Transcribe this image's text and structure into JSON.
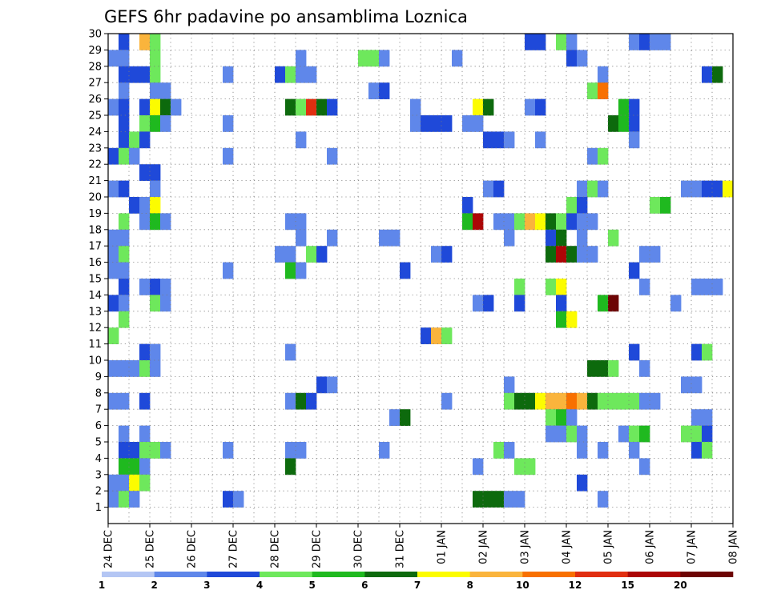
{
  "chart_data": {
    "type": "heatmap",
    "title": "GEFS 6hr padavine po ansamblima Loznica",
    "xlabel": "",
    "ylabel": "",
    "x_tick_labels": [
      "24 DEC",
      "25 DEC",
      "26 DEC",
      "27 DEC",
      "28 DEC",
      "29 DEC",
      "30 DEC",
      "31 DEC",
      "01 JAN",
      "02 JAN",
      "03 JAN",
      "04 JAN",
      "05 JAN",
      "06 JAN",
      "07 JAN",
      "08 JAN"
    ],
    "y_tick_labels": [
      "1",
      "2",
      "3",
      "4",
      "5",
      "6",
      "7",
      "8",
      "9",
      "10",
      "11",
      "12",
      "13",
      "14",
      "15",
      "16",
      "17",
      "18",
      "19",
      "20",
      "21",
      "22",
      "23",
      "24",
      "25",
      "26",
      "27",
      "28",
      "29",
      "30"
    ],
    "time_steps_per_day": 4,
    "time_steps_total": 60,
    "members_range": [
      0,
      30
    ],
    "grid": true,
    "legend_position": "bottom",
    "colorbar": {
      "labels": [
        "1",
        "2",
        "3",
        "4",
        "5",
        "6",
        "7",
        "8",
        "10",
        "12",
        "15",
        "20"
      ],
      "colors": [
        "#b4c6f4",
        "#5f87ea",
        "#1f49d9",
        "#6ee85c",
        "#1fb91f",
        "#0d6a0d",
        "#fcfc00",
        "#fab43c",
        "#f87000",
        "#e12e10",
        "#ac0606",
        "#6d0404"
      ]
    },
    "cells": [
      [
        1,
        29,
        2
      ],
      [
        3,
        29,
        7
      ],
      [
        4,
        29,
        3
      ],
      [
        40,
        29,
        2
      ],
      [
        41,
        29,
        2
      ],
      [
        43,
        29,
        3
      ],
      [
        44,
        29,
        1
      ],
      [
        50,
        29,
        1
      ],
      [
        51,
        29,
        2
      ],
      [
        52,
        29,
        1
      ],
      [
        53,
        29,
        1
      ],
      [
        0,
        28,
        1
      ],
      [
        1,
        28,
        1
      ],
      [
        4,
        28,
        3
      ],
      [
        18,
        28,
        1
      ],
      [
        24,
        28,
        3
      ],
      [
        25,
        28,
        3
      ],
      [
        26,
        28,
        1
      ],
      [
        33,
        28,
        1
      ],
      [
        44,
        28,
        2
      ],
      [
        45,
        28,
        1
      ],
      [
        1,
        27,
        2
      ],
      [
        2,
        27,
        2
      ],
      [
        3,
        27,
        2
      ],
      [
        4,
        27,
        3
      ],
      [
        11,
        27,
        1
      ],
      [
        16,
        27,
        2
      ],
      [
        17,
        27,
        3
      ],
      [
        18,
        27,
        1
      ],
      [
        19,
        27,
        1
      ],
      [
        47,
        27,
        1
      ],
      [
        57,
        27,
        2
      ],
      [
        58,
        27,
        5
      ],
      [
        1,
        26,
        1
      ],
      [
        4,
        26,
        1
      ],
      [
        5,
        26,
        1
      ],
      [
        25,
        26,
        1
      ],
      [
        26,
        26,
        2
      ],
      [
        46,
        26,
        3
      ],
      [
        47,
        26,
        8
      ],
      [
        0,
        25,
        1
      ],
      [
        1,
        25,
        2
      ],
      [
        3,
        25,
        2
      ],
      [
        4,
        25,
        6
      ],
      [
        5,
        25,
        5
      ],
      [
        6,
        25,
        1
      ],
      [
        17,
        25,
        5
      ],
      [
        18,
        25,
        3
      ],
      [
        19,
        25,
        9
      ],
      [
        20,
        25,
        5
      ],
      [
        21,
        25,
        2
      ],
      [
        29,
        25,
        1
      ],
      [
        35,
        25,
        6
      ],
      [
        36,
        25,
        5
      ],
      [
        40,
        25,
        1
      ],
      [
        41,
        25,
        2
      ],
      [
        49,
        25,
        4
      ],
      [
        50,
        25,
        2
      ],
      [
        1,
        24,
        2
      ],
      [
        3,
        24,
        3
      ],
      [
        4,
        24,
        4
      ],
      [
        5,
        24,
        1
      ],
      [
        11,
        24,
        1
      ],
      [
        29,
        24,
        1
      ],
      [
        30,
        24,
        2
      ],
      [
        31,
        24,
        2
      ],
      [
        32,
        24,
        2
      ],
      [
        34,
        24,
        1
      ],
      [
        35,
        24,
        1
      ],
      [
        48,
        24,
        5
      ],
      [
        49,
        24,
        4
      ],
      [
        50,
        24,
        2
      ],
      [
        1,
        23,
        2
      ],
      [
        2,
        23,
        3
      ],
      [
        3,
        23,
        2
      ],
      [
        18,
        23,
        1
      ],
      [
        36,
        23,
        2
      ],
      [
        37,
        23,
        2
      ],
      [
        38,
        23,
        1
      ],
      [
        41,
        23,
        1
      ],
      [
        50,
        23,
        1
      ],
      [
        0,
        22,
        2
      ],
      [
        1,
        22,
        3
      ],
      [
        2,
        22,
        1
      ],
      [
        11,
        22,
        1
      ],
      [
        21,
        22,
        1
      ],
      [
        46,
        22,
        1
      ],
      [
        47,
        22,
        3
      ],
      [
        3,
        21,
        2
      ],
      [
        4,
        21,
        2
      ],
      [
        0,
        20,
        1
      ],
      [
        1,
        20,
        2
      ],
      [
        4,
        20,
        1
      ],
      [
        36,
        20,
        1
      ],
      [
        37,
        20,
        2
      ],
      [
        45,
        20,
        1
      ],
      [
        46,
        20,
        3
      ],
      [
        47,
        20,
        1
      ],
      [
        55,
        20,
        1
      ],
      [
        56,
        20,
        1
      ],
      [
        57,
        20,
        2
      ],
      [
        58,
        20,
        2
      ],
      [
        59,
        20,
        6
      ],
      [
        2,
        19,
        2
      ],
      [
        3,
        19,
        1
      ],
      [
        4,
        19,
        6
      ],
      [
        34,
        19,
        2
      ],
      [
        44,
        19,
        3
      ],
      [
        45,
        19,
        2
      ],
      [
        52,
        19,
        3
      ],
      [
        53,
        19,
        4
      ],
      [
        1,
        18,
        3
      ],
      [
        3,
        18,
        1
      ],
      [
        4,
        18,
        4
      ],
      [
        5,
        18,
        1
      ],
      [
        17,
        18,
        1
      ],
      [
        18,
        18,
        1
      ],
      [
        34,
        18,
        4
      ],
      [
        35,
        18,
        10
      ],
      [
        37,
        18,
        1
      ],
      [
        38,
        18,
        1
      ],
      [
        39,
        18,
        3
      ],
      [
        40,
        18,
        7
      ],
      [
        41,
        18,
        6
      ],
      [
        42,
        18,
        5
      ],
      [
        43,
        18,
        3
      ],
      [
        44,
        18,
        2
      ],
      [
        45,
        18,
        1
      ],
      [
        46,
        18,
        1
      ],
      [
        0,
        17,
        1
      ],
      [
        1,
        17,
        1
      ],
      [
        18,
        17,
        1
      ],
      [
        21,
        17,
        1
      ],
      [
        26,
        17,
        1
      ],
      [
        27,
        17,
        1
      ],
      [
        38,
        17,
        1
      ],
      [
        42,
        17,
        2
      ],
      [
        43,
        17,
        5
      ],
      [
        45,
        17,
        1
      ],
      [
        48,
        17,
        3
      ],
      [
        0,
        16,
        1
      ],
      [
        1,
        16,
        3
      ],
      [
        16,
        16,
        1
      ],
      [
        17,
        16,
        1
      ],
      [
        19,
        16,
        3
      ],
      [
        20,
        16,
        2
      ],
      [
        31,
        16,
        1
      ],
      [
        32,
        16,
        2
      ],
      [
        42,
        16,
        5
      ],
      [
        43,
        16,
        10
      ],
      [
        44,
        16,
        5
      ],
      [
        45,
        16,
        1
      ],
      [
        46,
        16,
        1
      ],
      [
        51,
        16,
        1
      ],
      [
        52,
        16,
        1
      ],
      [
        0,
        15,
        1
      ],
      [
        1,
        15,
        1
      ],
      [
        11,
        15,
        1
      ],
      [
        17,
        15,
        4
      ],
      [
        18,
        15,
        1
      ],
      [
        28,
        15,
        2
      ],
      [
        50,
        15,
        2
      ],
      [
        1,
        14,
        2
      ],
      [
        3,
        14,
        1
      ],
      [
        4,
        14,
        2
      ],
      [
        5,
        14,
        1
      ],
      [
        39,
        14,
        3
      ],
      [
        42,
        14,
        3
      ],
      [
        43,
        14,
        6
      ],
      [
        51,
        14,
        1
      ],
      [
        56,
        14,
        1
      ],
      [
        57,
        14,
        1
      ],
      [
        58,
        14,
        1
      ],
      [
        0,
        13,
        2
      ],
      [
        1,
        13,
        1
      ],
      [
        4,
        13,
        3
      ],
      [
        5,
        13,
        1
      ],
      [
        35,
        13,
        1
      ],
      [
        36,
        13,
        2
      ],
      [
        39,
        13,
        2
      ],
      [
        43,
        13,
        2
      ],
      [
        47,
        13,
        4
      ],
      [
        48,
        13,
        11
      ],
      [
        54,
        13,
        1
      ],
      [
        1,
        12,
        3
      ],
      [
        43,
        12,
        4
      ],
      [
        44,
        12,
        6
      ],
      [
        0,
        11,
        3
      ],
      [
        30,
        11,
        2
      ],
      [
        31,
        11,
        7
      ],
      [
        32,
        11,
        3
      ],
      [
        3,
        10,
        2
      ],
      [
        4,
        10,
        1
      ],
      [
        17,
        10,
        1
      ],
      [
        50,
        10,
        2
      ],
      [
        56,
        10,
        2
      ],
      [
        57,
        10,
        3
      ],
      [
        0,
        9,
        1
      ],
      [
        1,
        9,
        1
      ],
      [
        2,
        9,
        1
      ],
      [
        3,
        9,
        3
      ],
      [
        4,
        9,
        1
      ],
      [
        46,
        9,
        5
      ],
      [
        47,
        9,
        5
      ],
      [
        48,
        9,
        3
      ],
      [
        51,
        9,
        1
      ],
      [
        20,
        8,
        2
      ],
      [
        21,
        8,
        1
      ],
      [
        38,
        8,
        1
      ],
      [
        55,
        8,
        1
      ],
      [
        56,
        8,
        1
      ],
      [
        0,
        7,
        1
      ],
      [
        1,
        7,
        1
      ],
      [
        3,
        7,
        2
      ],
      [
        17,
        7,
        1
      ],
      [
        18,
        7,
        5
      ],
      [
        19,
        7,
        2
      ],
      [
        32,
        7,
        1
      ],
      [
        38,
        7,
        3
      ],
      [
        39,
        7,
        5
      ],
      [
        40,
        7,
        5
      ],
      [
        41,
        7,
        6
      ],
      [
        42,
        7,
        7
      ],
      [
        43,
        7,
        7
      ],
      [
        44,
        7,
        8
      ],
      [
        45,
        7,
        7
      ],
      [
        46,
        7,
        5
      ],
      [
        47,
        7,
        3
      ],
      [
        48,
        7,
        3
      ],
      [
        49,
        7,
        3
      ],
      [
        50,
        7,
        3
      ],
      [
        51,
        7,
        1
      ],
      [
        52,
        7,
        1
      ],
      [
        27,
        6,
        1
      ],
      [
        28,
        6,
        5
      ],
      [
        42,
        6,
        3
      ],
      [
        43,
        6,
        4
      ],
      [
        44,
        6,
        1
      ],
      [
        56,
        6,
        1
      ],
      [
        57,
        6,
        1
      ],
      [
        1,
        5,
        1
      ],
      [
        3,
        5,
        1
      ],
      [
        42,
        5,
        1
      ],
      [
        43,
        5,
        1
      ],
      [
        44,
        5,
        3
      ],
      [
        45,
        5,
        1
      ],
      [
        49,
        5,
        1
      ],
      [
        50,
        5,
        3
      ],
      [
        51,
        5,
        4
      ],
      [
        55,
        5,
        3
      ],
      [
        56,
        5,
        3
      ],
      [
        57,
        5,
        2
      ],
      [
        1,
        4,
        2
      ],
      [
        2,
        4,
        2
      ],
      [
        3,
        4,
        3
      ],
      [
        4,
        4,
        3
      ],
      [
        5,
        4,
        1
      ],
      [
        11,
        4,
        1
      ],
      [
        17,
        4,
        1
      ],
      [
        18,
        4,
        1
      ],
      [
        26,
        4,
        1
      ],
      [
        37,
        4,
        3
      ],
      [
        38,
        4,
        1
      ],
      [
        45,
        4,
        1
      ],
      [
        47,
        4,
        1
      ],
      [
        50,
        4,
        1
      ],
      [
        56,
        4,
        2
      ],
      [
        57,
        4,
        3
      ],
      [
        1,
        3,
        4
      ],
      [
        2,
        3,
        4
      ],
      [
        3,
        3,
        1
      ],
      [
        17,
        3,
        5
      ],
      [
        35,
        3,
        1
      ],
      [
        39,
        3,
        3
      ],
      [
        40,
        3,
        3
      ],
      [
        51,
        3,
        1
      ],
      [
        0,
        2,
        1
      ],
      [
        1,
        2,
        1
      ],
      [
        2,
        2,
        6
      ],
      [
        3,
        2,
        3
      ],
      [
        45,
        2,
        2
      ],
      [
        0,
        1,
        1
      ],
      [
        1,
        1,
        3
      ],
      [
        2,
        1,
        1
      ],
      [
        11,
        1,
        2
      ],
      [
        12,
        1,
        1
      ],
      [
        35,
        1,
        5
      ],
      [
        36,
        1,
        5
      ],
      [
        37,
        1,
        5
      ],
      [
        38,
        1,
        1
      ],
      [
        39,
        1,
        1
      ],
      [
        47,
        1,
        1
      ]
    ]
  }
}
